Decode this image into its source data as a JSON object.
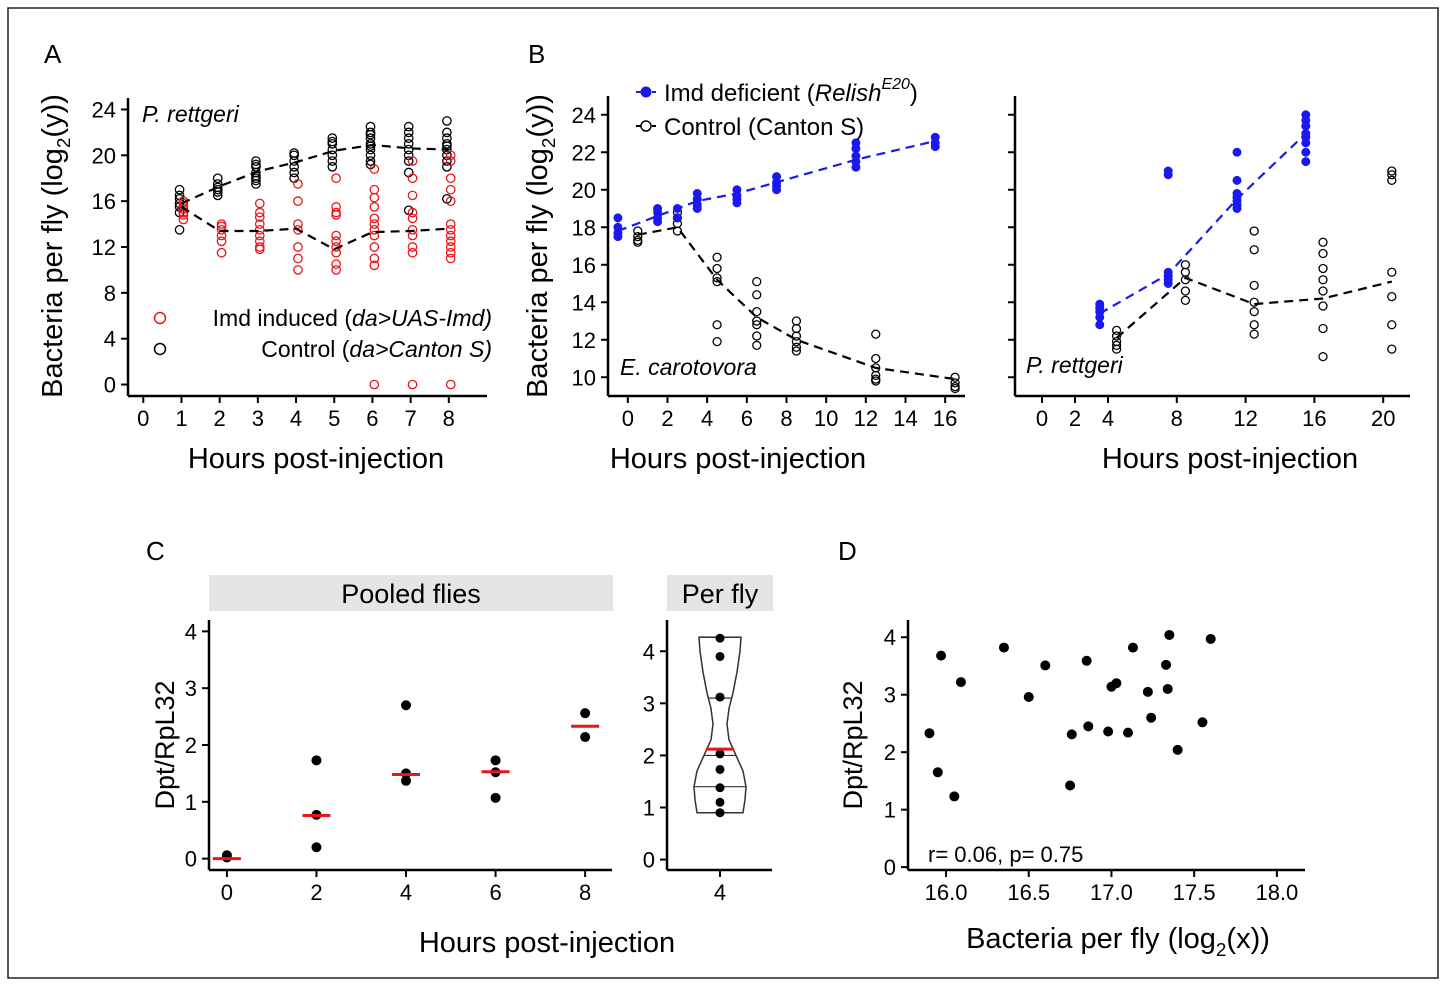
{
  "frame_color": "#222222",
  "colors": {
    "imd": "#e8161b",
    "control": "#000000",
    "deficient": "#1a1aec",
    "strip": "#e5e5e5",
    "median": "#e8161b"
  },
  "chart_data": [
    {
      "panel": "A",
      "type": "scatter",
      "annotation": "P. rettgeri",
      "xlabel": "Hours post-injection",
      "ylabel_parts": [
        "Bacteria per fly (log",
        "2",
        "(y))"
      ],
      "xlim": [
        -0.4,
        9
      ],
      "ylim": [
        -1,
        25
      ],
      "xticks": [
        0,
        1,
        2,
        3,
        4,
        5,
        6,
        7,
        8
      ],
      "yticks": [
        0,
        4,
        8,
        12,
        16,
        20,
        24
      ],
      "legend_position": "bottom-left",
      "series": [
        {
          "name": "Imd induced (",
          "name_italic": "da>UAS-Imd)",
          "color": "#e8161b",
          "marker": "open-circle",
          "x": [
            1,
            1,
            1,
            1,
            1,
            1,
            1,
            2,
            2,
            2,
            2,
            2,
            2,
            3,
            3,
            3,
            3,
            3,
            3,
            3,
            3,
            3,
            4,
            4,
            4,
            4,
            4,
            4,
            4,
            5,
            5,
            5,
            5,
            5,
            5,
            5,
            5,
            5,
            5,
            6,
            6,
            6,
            6,
            6,
            6,
            6,
            6,
            6,
            6,
            6,
            6,
            7,
            7,
            7,
            7,
            7,
            7,
            7,
            7,
            7,
            7,
            8,
            8,
            8,
            8,
            8,
            8,
            8,
            8,
            8,
            8,
            8,
            8,
            8
          ],
          "y": [
            16,
            15.6,
            15.3,
            15,
            14.8,
            15.8,
            14.4,
            14,
            13.5,
            13,
            12.5,
            11.5,
            13.8,
            15.8,
            15,
            14,
            13.5,
            13,
            12.5,
            12,
            11.8,
            14.6,
            17.5,
            16,
            14,
            13.5,
            12,
            11,
            10,
            18,
            15.5,
            15,
            13,
            12.5,
            12,
            11.5,
            10.5,
            10,
            14.8,
            18.8,
            17,
            15.5,
            14.5,
            14,
            13.5,
            13,
            12,
            11,
            0,
            10.4,
            16.3,
            19.5,
            18,
            16.5,
            15,
            14.5,
            13.5,
            13,
            12,
            11.5,
            0,
            20,
            19.5,
            18,
            17,
            16,
            14,
            13.5,
            13,
            12.5,
            12,
            11.5,
            11,
            0
          ]
        },
        {
          "name": "Control (",
          "name_italic": "da>Canton S)",
          "color": "#000000",
          "marker": "open-circle",
          "x": [
            1,
            1,
            1,
            1,
            1,
            1,
            1,
            2,
            2,
            2,
            2,
            2,
            2,
            3,
            3,
            3,
            3,
            3,
            3,
            3,
            3,
            4,
            4,
            4,
            4,
            4,
            4,
            5,
            5,
            5,
            5,
            5,
            5,
            5,
            6,
            6,
            6,
            6,
            6,
            6,
            6,
            6,
            6,
            6,
            7,
            7,
            7,
            7,
            7,
            7,
            7,
            7,
            7,
            8,
            8,
            8,
            8,
            8,
            8,
            8,
            8,
            8,
            8
          ],
          "y": [
            17,
            16.5,
            16.2,
            15.8,
            15.5,
            15,
            13.5,
            18,
            17.5,
            17,
            16.8,
            16.5,
            17.2,
            19.5,
            19,
            18.5,
            18.2,
            18,
            17.8,
            17.5,
            19.2,
            20,
            19.5,
            19,
            18.5,
            20.2,
            18,
            21.5,
            21,
            20.5,
            20,
            19.5,
            19,
            21.2,
            22.5,
            22,
            21.5,
            21,
            20.8,
            20.5,
            20,
            19.5,
            21.8,
            19.2,
            22.5,
            22,
            21,
            20.5,
            20,
            19.5,
            18.5,
            15.2,
            21.5,
            23,
            22,
            21.5,
            21,
            20.5,
            20,
            19.5,
            19,
            16.2,
            20.8
          ]
        }
      ],
      "trend_imd": {
        "x": [
          1,
          2,
          3,
          4,
          5,
          6,
          7,
          8
        ],
        "y": [
          15.5,
          13.4,
          13.4,
          13.6,
          11.8,
          13.3,
          13.4,
          13.6
        ]
      },
      "trend_control": {
        "x": [
          1,
          2,
          3,
          4,
          5,
          6,
          7,
          8
        ],
        "y": [
          15.8,
          17.3,
          18.6,
          19.4,
          20.4,
          20.9,
          20.6,
          20.5
        ]
      }
    },
    {
      "panel": "B",
      "type": "scatter",
      "annotation": "E. carotovora",
      "xlabel": "Hours post-injection",
      "ylabel_parts": [
        "Bacteria per fly (log",
        "2",
        "(y))"
      ],
      "xlim": [
        -1,
        17
      ],
      "ylim": [
        9,
        25
      ],
      "xticks": [
        0,
        2,
        4,
        6,
        8,
        10,
        12,
        14,
        16
      ],
      "yticks": [
        10,
        12,
        14,
        16,
        18,
        20,
        22,
        24
      ],
      "legend_position": "top-left",
      "series": [
        {
          "name": "Imd deficient (",
          "name_italic": "Relish",
          "name_sup": "E20",
          "name_end": ")",
          "color": "#1a1aec",
          "marker": "filled-circle",
          "x": [
            -0.5,
            -0.5,
            -0.5,
            -0.5,
            1.5,
            1.5,
            1.5,
            1.5,
            2.5,
            2.5,
            3.5,
            3.5,
            3.5,
            3.5,
            5.5,
            5.5,
            5.5,
            5.5,
            7.5,
            7.5,
            7.5,
            7.5,
            11.5,
            11.5,
            11.5,
            11.5,
            11.5,
            15.5,
            15.5,
            15.5
          ],
          "y": [
            18.5,
            18,
            17.7,
            17.5,
            19,
            18.8,
            18.5,
            18.3,
            19,
            18.5,
            19.8,
            19.5,
            19.2,
            19,
            20,
            19.7,
            19.5,
            19.3,
            20.7,
            20.4,
            20.2,
            20,
            22.5,
            22.2,
            21.8,
            21.5,
            21.2,
            22.8,
            22.5,
            22.3
          ]
        },
        {
          "name": "Control (Canton S)",
          "color": "#000000",
          "marker": "open-circle",
          "x": [
            0.5,
            0.5,
            0.5,
            0.5,
            2.5,
            2.5,
            2.5,
            2.5,
            4.5,
            4.5,
            4.5,
            4.5,
            4.5,
            4.5,
            6.5,
            6.5,
            6.5,
            6.5,
            6.5,
            6.5,
            6.5,
            8.5,
            8.5,
            8.5,
            8.5,
            8.5,
            8.5,
            12.5,
            12.5,
            12.5,
            12.5,
            12.5,
            12.5,
            16.5,
            16.5,
            16.5,
            16.5
          ],
          "y": [
            17.8,
            17.5,
            17.3,
            17.2,
            18.8,
            18.5,
            18.2,
            17.8,
            16.4,
            15.8,
            15.3,
            15.1,
            12.8,
            11.9,
            15.1,
            14.4,
            13.5,
            13,
            12.8,
            12.2,
            11.7,
            13,
            12.6,
            12.2,
            11.9,
            11.6,
            11.4,
            12.3,
            11,
            10.5,
            10.1,
            9.9,
            9.8,
            10,
            9.7,
            9.5,
            9.4
          ]
        }
      ],
      "trend_deficient": {
        "x": [
          -0.5,
          1.5,
          3.5,
          5.5,
          7.5,
          11.5,
          15.5
        ],
        "y": [
          17.8,
          18.6,
          19.4,
          19.8,
          20.4,
          21.6,
          22.6
        ]
      },
      "trend_control": {
        "x": [
          0.5,
          2.5,
          4.5,
          6.5,
          8.5,
          12.5,
          16.5
        ],
        "y": [
          17.6,
          18,
          15.2,
          13.2,
          12,
          10.5,
          9.9
        ]
      }
    },
    {
      "panel": "B-right",
      "type": "scatter",
      "annotation": "P. rettgeri",
      "xlabel": "Hours post-injection",
      "xlim": [
        -1.5,
        21.5
      ],
      "ylim": [
        9,
        25
      ],
      "xticks": [
        0,
        2,
        4,
        8,
        12,
        16,
        20
      ],
      "yticks": [
        10,
        12,
        14,
        16,
        18,
        20,
        22,
        24
      ],
      "series": [
        {
          "name": "Imd deficient",
          "color": "#1a1aec",
          "marker": "filled-circle",
          "x": [
            3.5,
            3.5,
            3.5,
            3.5,
            3.5,
            7.5,
            7.5,
            7.5,
            7.5,
            7.5,
            7.5,
            11.5,
            11.5,
            11.5,
            11.5,
            11.5,
            11.5,
            11.5,
            15.5,
            15.5,
            15.5,
            15.5,
            15.5,
            15.5,
            15.5,
            15.5
          ],
          "y": [
            13.9,
            13.7,
            13.5,
            13.2,
            12.8,
            21,
            20.8,
            15.6,
            15.4,
            15.2,
            15,
            22,
            20.5,
            19.8,
            19.6,
            19.4,
            19.2,
            19,
            24,
            23.7,
            23.4,
            23,
            22.8,
            22.5,
            22,
            21.5
          ]
        },
        {
          "name": "Control",
          "color": "#000000",
          "marker": "open-circle",
          "x": [
            4.5,
            4.5,
            4.5,
            4.5,
            4.5,
            8.5,
            8.5,
            8.5,
            8.5,
            8.5,
            12.5,
            12.5,
            12.5,
            12.5,
            12.5,
            12.5,
            12.5,
            16.5,
            16.5,
            16.5,
            16.5,
            16.5,
            16.5,
            16.5,
            16.5,
            20.5,
            20.5,
            20.5,
            20.5,
            20.5,
            20.5,
            20.5
          ],
          "y": [
            12.5,
            12.2,
            11.9,
            11.7,
            11.5,
            16,
            15.6,
            15.2,
            14.6,
            14.1,
            17.8,
            16.8,
            14.9,
            14,
            13.5,
            12.8,
            12.3,
            17.2,
            16.6,
            15.8,
            15.2,
            14.6,
            13.8,
            12.6,
            11.1,
            21,
            20.8,
            20.5,
            15.6,
            14.3,
            12.8,
            11.5
          ]
        }
      ],
      "trend_deficient": {
        "x": [
          3.5,
          7.5,
          11.5,
          15.5
        ],
        "y": [
          13.4,
          15.5,
          19.5,
          23
        ]
      },
      "trend_control": {
        "x": [
          4.5,
          8.5,
          12.5,
          16.5,
          20.5
        ],
        "y": [
          12.1,
          15.3,
          13.9,
          14.2,
          15.1
        ]
      }
    },
    {
      "panel": "C",
      "type": "scatter",
      "facet": "Pooled flies",
      "xlabel": "Hours post-injection",
      "ylabel": "Dpt/RpL32",
      "xlim": [
        -0.4,
        8.6
      ],
      "ylim": [
        -0.2,
        4.2
      ],
      "xticks": [
        0,
        2,
        4,
        6,
        8
      ],
      "yticks": [
        0,
        1,
        2,
        3,
        4
      ],
      "points": {
        "x": [
          0,
          0,
          2,
          2,
          2,
          4,
          4,
          4,
          6,
          6,
          6,
          8,
          8
        ],
        "y": [
          0.06,
          0.02,
          1.73,
          0.77,
          0.2,
          2.7,
          1.5,
          1.37,
          1.73,
          1.52,
          1.07,
          2.56,
          2.14
        ]
      },
      "medians": {
        "x": [
          0,
          2,
          4,
          6,
          8
        ],
        "y": [
          0.0,
          0.76,
          1.48,
          1.53,
          2.33
        ]
      }
    },
    {
      "panel": "C-right",
      "type": "violin",
      "facet": "Per fly",
      "ylim": [
        -0.2,
        4.6
      ],
      "yticks": [
        0,
        1,
        2,
        3,
        4
      ],
      "categories": [
        "4"
      ],
      "points": {
        "y": [
          4.25,
          3.9,
          3.12,
          2.03,
          1.73,
          1.38,
          1.1,
          0.9
        ]
      },
      "quartiles": [
        1.4,
        2.0,
        3.1
      ],
      "mean": 2.12
    },
    {
      "panel": "D",
      "type": "scatter",
      "xlabel_parts": [
        "Bacteria per fly (log",
        "2",
        "(x))"
      ],
      "ylabel": "Dpt/RpL32",
      "annotation": "r= 0.06, p= 0.75",
      "xlim": [
        15.77,
        18.17
      ],
      "ylim": [
        -0.05,
        4.3
      ],
      "xticks": [
        16.0,
        16.5,
        17.0,
        17.5,
        18.0
      ],
      "xtick_labels": [
        "16.0",
        "16.5",
        "17.0",
        "17.5",
        "18.0"
      ],
      "yticks": [
        0,
        1,
        2,
        3,
        4
      ],
      "points": {
        "x": [
          15.9,
          15.95,
          15.97,
          16.05,
          16.09,
          16.35,
          16.5,
          16.6,
          16.75,
          16.76,
          16.85,
          16.86,
          16.98,
          17,
          17.03,
          17.1,
          17.13,
          17.22,
          17.24,
          17.33,
          17.34,
          17.35,
          17.4,
          17.55,
          17.6
        ],
        "y": [
          2.33,
          1.65,
          3.68,
          1.23,
          3.22,
          3.82,
          2.96,
          3.51,
          1.42,
          2.31,
          3.59,
          2.45,
          2.36,
          3.14,
          3.2,
          2.34,
          3.82,
          3.05,
          2.6,
          3.52,
          3.1,
          4.04,
          2.04,
          2.52,
          3.97
        ]
      }
    }
  ],
  "panel_letters": {
    "a": "A",
    "b": "B",
    "c": "C",
    "d": "D"
  }
}
